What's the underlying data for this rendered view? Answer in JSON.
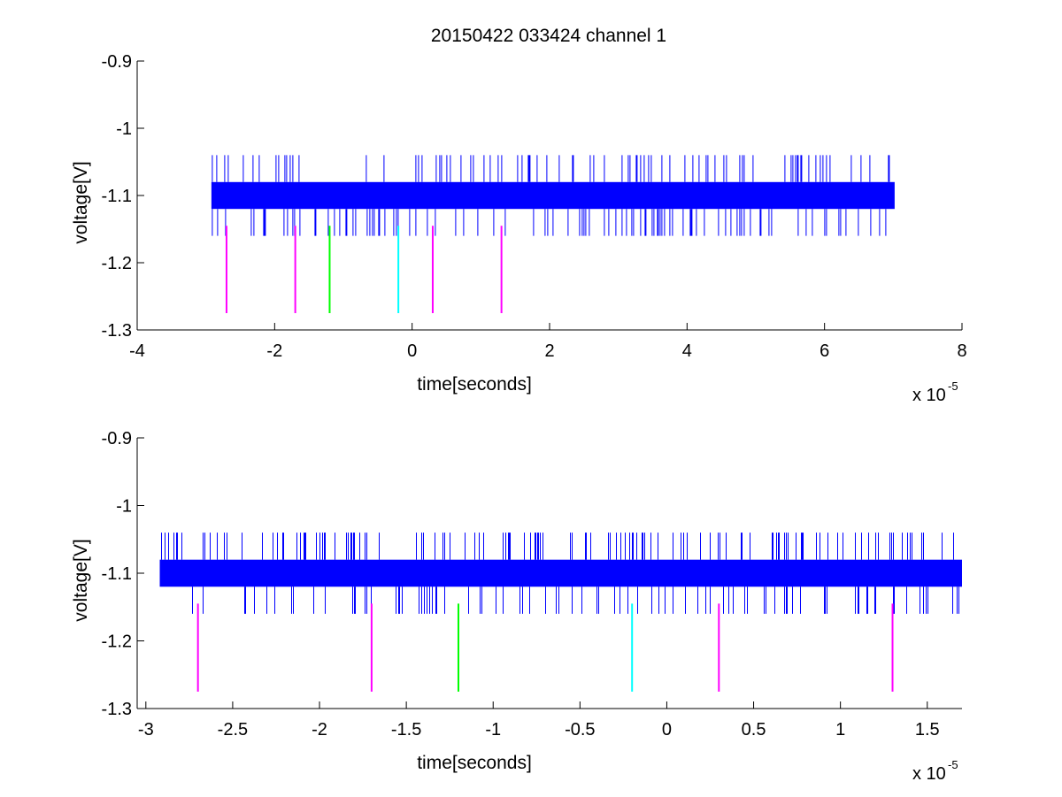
{
  "figure": {
    "title": "20150422 033424 channel 1",
    "background": "#ffffff"
  },
  "chart_data": [
    {
      "type": "line",
      "title": "20150422 033424 channel 1",
      "xlabel": "time[seconds]",
      "ylabel": "voltage[V]",
      "x_multiplier_label": "x 10",
      "x_multiplier_exponent": "-5",
      "xlim": [
        -4,
        8
      ],
      "ylim": [
        -1.3,
        -0.9
      ],
      "x_ticks": [
        -4,
        -2,
        0,
        2,
        4,
        6,
        8
      ],
      "x_tick_labels": [
        "-4",
        "-2",
        "0",
        "2",
        "4",
        "6",
        "8"
      ],
      "y_ticks": [
        -1.3,
        -1.2,
        -1.1,
        -1.0,
        -0.9
      ],
      "y_tick_labels": [
        "-1.3",
        "-1.2",
        "-1.1",
        "-1",
        "-0.9"
      ],
      "grid": false,
      "signal": {
        "color": "#0000ff",
        "x_range": [
          -2.92,
          7.02
        ],
        "base_band": [
          -1.12,
          -1.08
        ],
        "spike_high": -1.04,
        "spike_low": -1.16
      },
      "markers": [
        {
          "x": -2.7,
          "color": "#ff00ff",
          "y_range": [
            -1.275,
            -1.145
          ]
        },
        {
          "x": -1.7,
          "color": "#ff00ff",
          "y_range": [
            -1.275,
            -1.145
          ]
        },
        {
          "x": -1.2,
          "color": "#00ff00",
          "y_range": [
            -1.275,
            -1.145
          ]
        },
        {
          "x": -0.2,
          "color": "#00ffff",
          "y_range": [
            -1.275,
            -1.145
          ]
        },
        {
          "x": 0.3,
          "color": "#ff00ff",
          "y_range": [
            -1.275,
            -1.145
          ]
        },
        {
          "x": 1.3,
          "color": "#ff00ff",
          "y_range": [
            -1.275,
            -1.145
          ]
        }
      ]
    },
    {
      "type": "line",
      "title": "",
      "xlabel": "time[seconds]",
      "ylabel": "voltage[V]",
      "x_multiplier_label": "x 10",
      "x_multiplier_exponent": "-5",
      "xlim": [
        -3.05,
        1.7
      ],
      "ylim": [
        -1.3,
        -0.9
      ],
      "x_ticks": [
        -3,
        -2.5,
        -2,
        -1.5,
        -1,
        -0.5,
        0,
        0.5,
        1,
        1.5
      ],
      "x_tick_labels": [
        "-3",
        "-2.5",
        "-2",
        "-1.5",
        "-1",
        "-0.5",
        "0",
        "0.5",
        "1",
        "1.5"
      ],
      "y_ticks": [
        -1.3,
        -1.2,
        -1.1,
        -1.0,
        -0.9
      ],
      "y_tick_labels": [
        "-1.3",
        "-1.2",
        "-1.1",
        "-1",
        "-0.9"
      ],
      "grid": false,
      "signal": {
        "color": "#0000ff",
        "x_range": [
          -2.92,
          1.7
        ],
        "base_band": [
          -1.12,
          -1.08
        ],
        "spike_high": -1.04,
        "spike_low": -1.16
      },
      "markers": [
        {
          "x": -2.7,
          "color": "#ff00ff",
          "y_range": [
            -1.275,
            -1.145
          ]
        },
        {
          "x": -1.7,
          "color": "#ff00ff",
          "y_range": [
            -1.275,
            -1.145
          ]
        },
        {
          "x": -1.2,
          "color": "#00ff00",
          "y_range": [
            -1.275,
            -1.145
          ]
        },
        {
          "x": -0.2,
          "color": "#00ffff",
          "y_range": [
            -1.275,
            -1.145
          ]
        },
        {
          "x": 0.3,
          "color": "#ff00ff",
          "y_range": [
            -1.275,
            -1.145
          ]
        },
        {
          "x": 1.3,
          "color": "#ff00ff",
          "y_range": [
            -1.275,
            -1.145
          ]
        }
      ]
    }
  ]
}
